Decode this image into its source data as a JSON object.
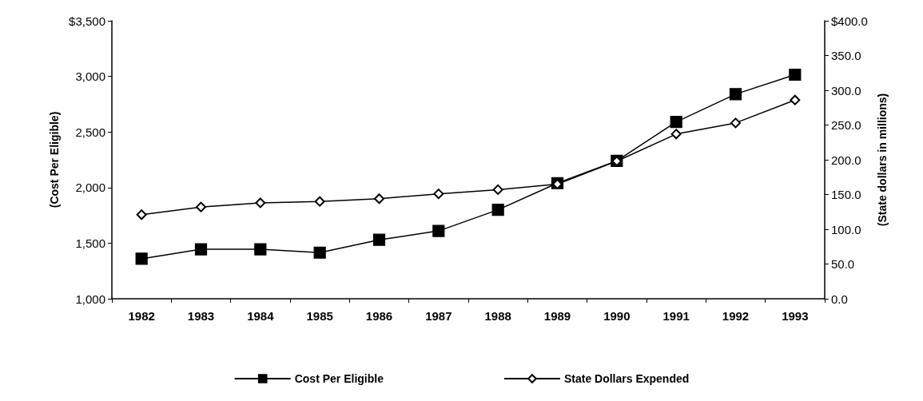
{
  "chart_data": {
    "type": "line",
    "ylabel": "(Cost Per Eligible)",
    "y2label": "(State dollars in millions)",
    "categories": [
      "1982",
      "1983",
      "1984",
      "1985",
      "1986",
      "1987",
      "1988",
      "1989",
      "1990",
      "1991",
      "1992",
      "1993"
    ],
    "series": [
      {
        "name": "Cost Per Eligible",
        "color": "#000000",
        "marker": "square",
        "values": [
          1360,
          1445,
          1445,
          1415,
          1530,
          1610,
          1800,
          2040,
          2240,
          2590,
          2840,
          3015
        ]
      },
      {
        "name": "State Dollars Expended",
        "color": "#000000",
        "marker": "diamond",
        "axis": "y2",
        "values": [
          121,
          132,
          138,
          140,
          144,
          151,
          157,
          165,
          198,
          237,
          253,
          286
        ]
      }
    ],
    "ylim": [
      1000,
      3500
    ],
    "yticks": [
      {
        "value": 1000,
        "label": "1,000"
      },
      {
        "value": 1500,
        "label": "1,500"
      },
      {
        "value": 2000,
        "label": "2,000"
      },
      {
        "value": 2500,
        "label": "2,500"
      },
      {
        "value": 3000,
        "label": "3,000"
      },
      {
        "value": 3500,
        "label": "$3,500"
      }
    ],
    "y2lim": [
      0,
      400
    ],
    "y2ticks": [
      {
        "value": 0,
        "label": "0.0"
      },
      {
        "value": 50,
        "label": "50.0"
      },
      {
        "value": 100,
        "label": "100.0"
      },
      {
        "value": 150,
        "label": "150.0"
      },
      {
        "value": 200,
        "label": "200.0"
      },
      {
        "value": 250,
        "label": "250.0"
      },
      {
        "value": 300,
        "label": "300.0"
      },
      {
        "value": 350,
        "label": "350.0"
      },
      {
        "value": 400,
        "label": "$400.0"
      }
    ],
    "grid": false,
    "legend": "bottom",
    "line_style": "solid"
  }
}
